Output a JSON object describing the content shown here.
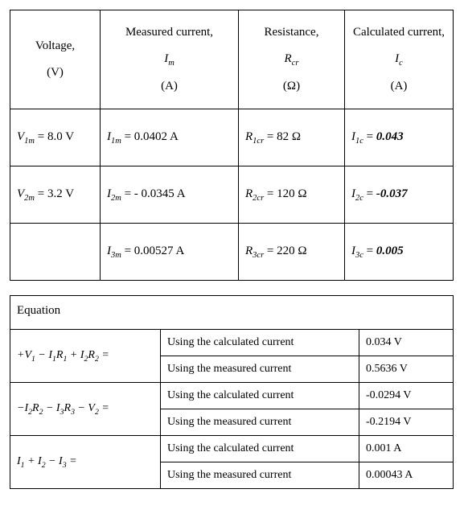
{
  "table1": {
    "headers": {
      "voltage_label": "Voltage,",
      "voltage_unit": "(V)",
      "measured_label": "Measured current,",
      "measured_sym_html": "I<sub>m</sub>",
      "measured_unit": "(A)",
      "resistance_label": "Resistance,",
      "resistance_sym_html": "R<sub>cr</sub>",
      "resistance_unit": "(Ω)",
      "calc_label": "Calculated current,",
      "calc_sym_html": "I<sub>c</sub>",
      "calc_unit": "(A)"
    },
    "rows": [
      {
        "V_sym_html": "V<sub>1m</sub>",
        "V_rhs": " = 8.0 V",
        "Im_sym_html": "I<sub>1m</sub>",
        "Im_rhs": " =  0.0402 A",
        "R_sym_html": "R<sub>1cr</sub>",
        "R_rhs": " =  82 Ω",
        "Ic_sym_html": "I<sub>1c</sub>",
        "Ic_eq": "  = ",
        "Ic_val": "0.043"
      },
      {
        "V_sym_html": "V<sub>2m</sub>",
        "V_rhs": " = 3.2 V",
        "Im_sym_html": "I<sub>2m</sub>",
        "Im_rhs": " =  - 0.0345 A",
        "R_sym_html": "R<sub>2cr</sub>",
        "R_rhs": " =  120 Ω",
        "Ic_sym_html": "I<sub>2c</sub>",
        "Ic_eq": "  = ",
        "Ic_val": "-0.037"
      },
      {
        "V_sym_html": "",
        "V_rhs": "",
        "Im_sym_html": "I<sub>3m</sub>",
        "Im_rhs": " =  0.00527 A",
        "R_sym_html": "R<sub>3cr</sub>",
        "R_rhs": " =  220 Ω",
        "Ic_sym_html": "I<sub>3c</sub>",
        "Ic_eq": "  = ",
        "Ic_val": "0.005"
      }
    ]
  },
  "table2": {
    "header": "Equation",
    "desc_calc": "Using the calculated current",
    "desc_meas": "Using the measured current",
    "rows": [
      {
        "lhs_html": "+V<sub>1</sub> − I<sub>1</sub>R<sub>1</sub> + I<sub>2</sub>R<sub>2</sub> = ",
        "calc_val": "0.034 V",
        "meas_val": "0.5636 V"
      },
      {
        "lhs_html": "−I<sub>2</sub>R<sub>2</sub> − I<sub>3</sub>R<sub>3</sub> − V<sub>2</sub> = ",
        "calc_val": "-0.0294 V",
        "meas_val": "-0.2194 V"
      },
      {
        "lhs_html": "I<sub>1</sub> + I<sub>2</sub> − I<sub>3</sub> = ",
        "calc_val": "0.001 A",
        "meas_val": "0.00043 A"
      }
    ]
  }
}
